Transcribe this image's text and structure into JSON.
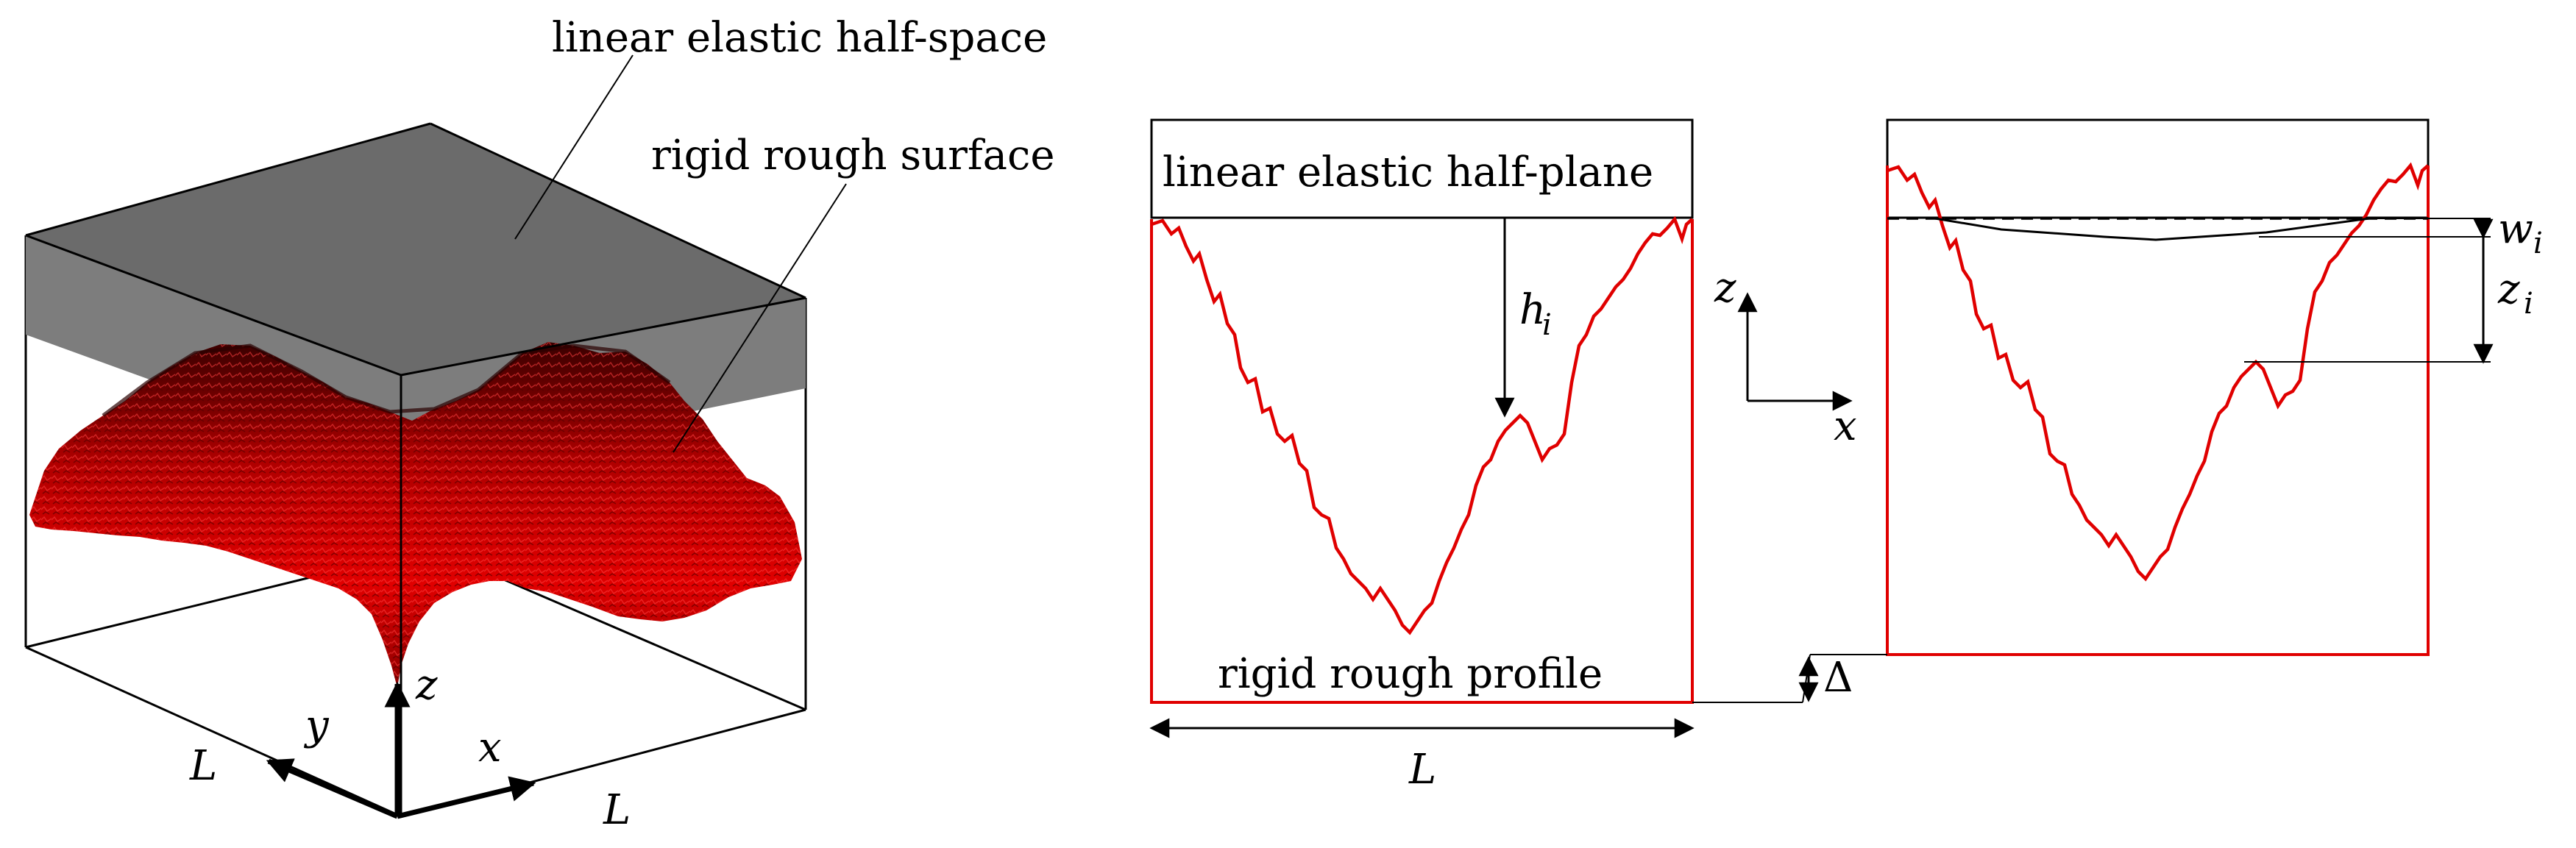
{
  "panel_3d": {
    "label_half_space": "linear elastic half-space",
    "label_rough_surface": "rigid rough surface",
    "axis_z": "z",
    "axis_y": "y",
    "axis_x": "x",
    "length_left": "L",
    "length_right": "L",
    "colors": {
      "half_space": "#808080",
      "surface": "#cc0000",
      "surface_dark": "#5a0000"
    }
  },
  "panel_initial": {
    "label_half_plane": "linear elastic half-plane",
    "label_profile": "rigid rough profile",
    "gap_label": "h",
    "gap_sub": "i",
    "length": "L"
  },
  "axes_inset": {
    "z": "z",
    "x": "x"
  },
  "panel_deformed": {
    "displacement_label": "w",
    "displacement_sub": "i",
    "height_label": "z",
    "height_sub": "i",
    "approach": "Δ"
  },
  "colors": {
    "profile": "#e00000",
    "frame": "#000000"
  }
}
